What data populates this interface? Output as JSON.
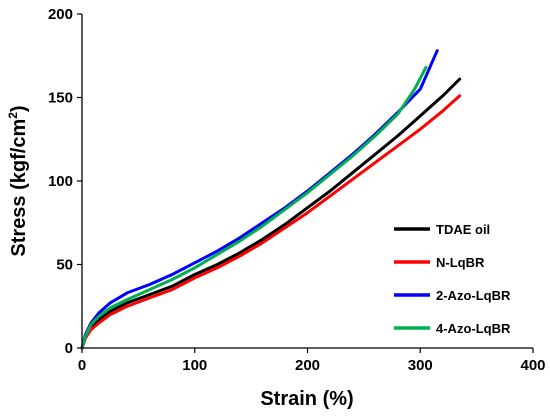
{
  "chart_data": {
    "type": "line",
    "title": "",
    "xlabel": "Strain (%)",
    "ylabel_main": "Stress (kgf/cm",
    "ylabel_sup": "2",
    "ylabel_close": ")",
    "xlim": [
      0,
      400
    ],
    "ylim": [
      0,
      200
    ],
    "xticks": [
      0,
      100,
      200,
      300,
      400
    ],
    "yticks": [
      0,
      50,
      100,
      150,
      200
    ],
    "grid": false,
    "legend_position": "bottom-right",
    "series": [
      {
        "name": "TDAE oil",
        "color": "#000000",
        "points": [
          [
            0,
            0
          ],
          [
            3,
            6
          ],
          [
            8,
            12
          ],
          [
            15,
            17
          ],
          [
            25,
            22
          ],
          [
            40,
            27
          ],
          [
            60,
            32
          ],
          [
            80,
            37
          ],
          [
            100,
            44
          ],
          [
            120,
            50
          ],
          [
            140,
            57
          ],
          [
            160,
            65
          ],
          [
            180,
            74
          ],
          [
            200,
            84
          ],
          [
            220,
            94
          ],
          [
            240,
            105
          ],
          [
            260,
            116
          ],
          [
            280,
            127
          ],
          [
            300,
            139
          ],
          [
            320,
            151
          ],
          [
            335,
            161
          ]
        ]
      },
      {
        "name": "N-LqBR",
        "color": "#ff0000",
        "points": [
          [
            0,
            0
          ],
          [
            3,
            6
          ],
          [
            8,
            11
          ],
          [
            15,
            15
          ],
          [
            25,
            20
          ],
          [
            40,
            25
          ],
          [
            60,
            30
          ],
          [
            80,
            35
          ],
          [
            100,
            42
          ],
          [
            120,
            48
          ],
          [
            140,
            55
          ],
          [
            160,
            63
          ],
          [
            180,
            72
          ],
          [
            200,
            81
          ],
          [
            220,
            91
          ],
          [
            240,
            101
          ],
          [
            260,
            111
          ],
          [
            280,
            121
          ],
          [
            300,
            131
          ],
          [
            320,
            142
          ],
          [
            335,
            151
          ]
        ]
      },
      {
        "name": "2-Azo-LqBR",
        "color": "#0000ff",
        "points": [
          [
            0,
            0
          ],
          [
            3,
            8
          ],
          [
            8,
            15
          ],
          [
            15,
            21
          ],
          [
            25,
            27
          ],
          [
            40,
            33
          ],
          [
            60,
            38
          ],
          [
            80,
            44
          ],
          [
            100,
            51
          ],
          [
            120,
            58
          ],
          [
            140,
            66
          ],
          [
            160,
            75
          ],
          [
            180,
            84
          ],
          [
            200,
            94
          ],
          [
            220,
            105
          ],
          [
            240,
            116
          ],
          [
            260,
            128
          ],
          [
            280,
            141
          ],
          [
            300,
            155
          ],
          [
            315,
            178
          ]
        ]
      },
      {
        "name": "4-Azo-LqBR",
        "color": "#00b050",
        "points": [
          [
            0,
            0
          ],
          [
            3,
            7
          ],
          [
            8,
            14
          ],
          [
            15,
            19
          ],
          [
            25,
            24
          ],
          [
            40,
            29
          ],
          [
            60,
            35
          ],
          [
            80,
            41
          ],
          [
            100,
            48
          ],
          [
            120,
            56
          ],
          [
            140,
            64
          ],
          [
            160,
            73
          ],
          [
            180,
            83
          ],
          [
            200,
            93
          ],
          [
            220,
            104
          ],
          [
            240,
            115
          ],
          [
            260,
            127
          ],
          [
            280,
            140
          ],
          [
            295,
            155
          ],
          [
            305,
            168
          ]
        ]
      }
    ]
  }
}
